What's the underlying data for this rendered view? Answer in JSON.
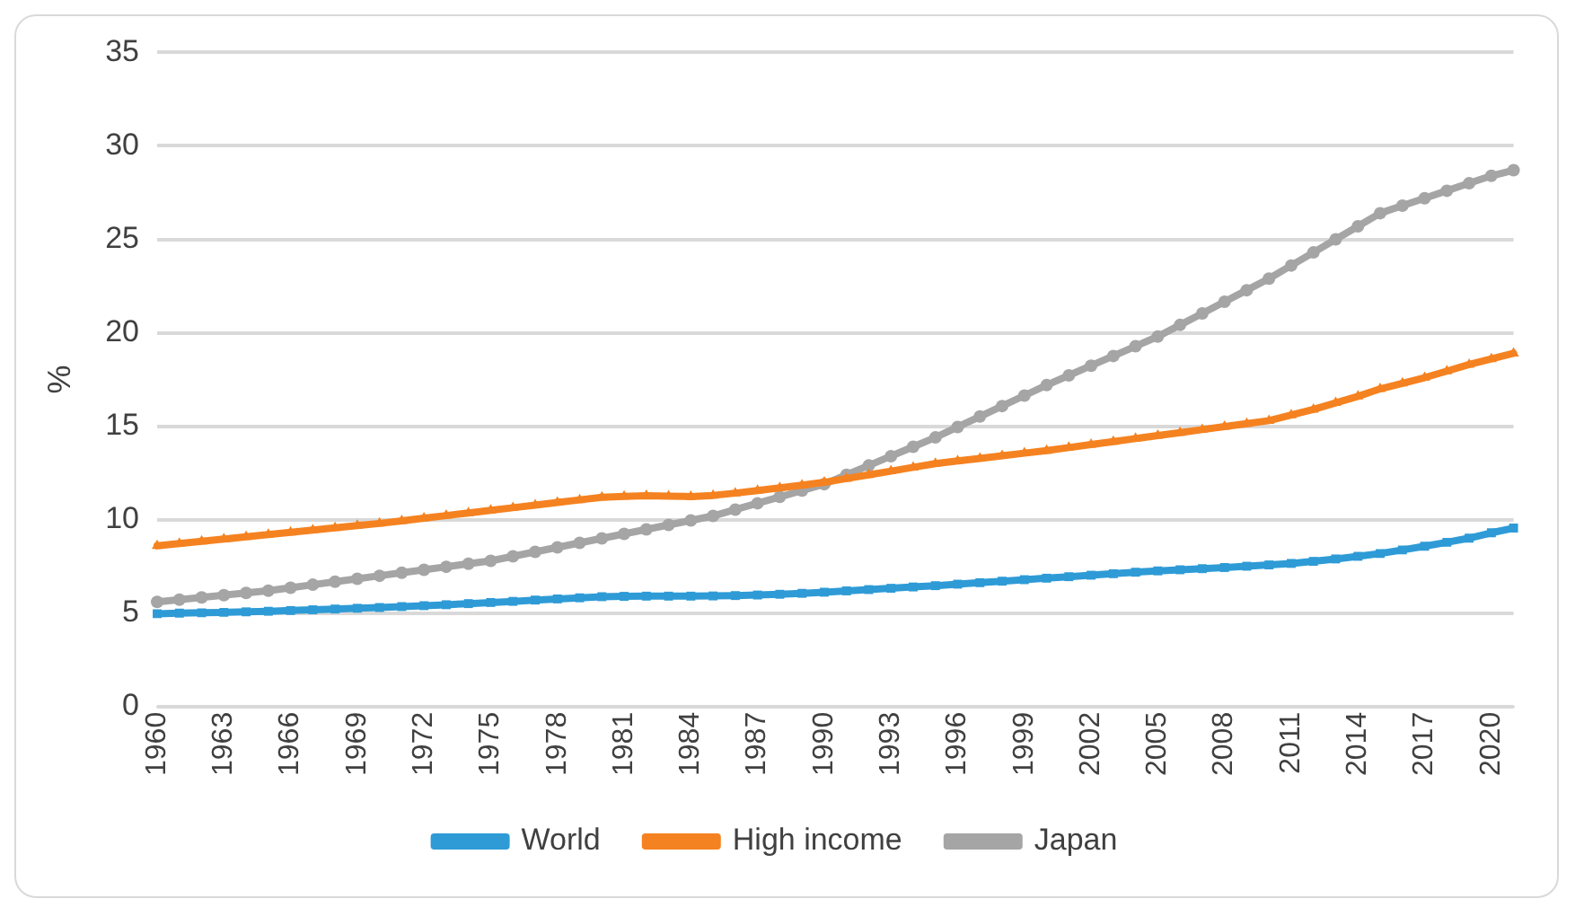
{
  "chart_data": {
    "type": "line",
    "ylabel": "%",
    "categories": [
      "1960",
      null,
      null,
      "1963",
      null,
      null,
      "1966",
      null,
      null,
      "1969",
      null,
      null,
      "1972",
      null,
      null,
      "1975",
      null,
      null,
      "1978",
      null,
      null,
      "1981",
      null,
      null,
      "1984",
      null,
      null,
      "1987",
      null,
      null,
      "1990",
      null,
      null,
      "1993",
      null,
      null,
      "1996",
      null,
      null,
      "1999",
      null,
      null,
      "2002",
      null,
      null,
      "2005",
      null,
      null,
      "2008",
      null,
      null,
      "2011",
      null,
      null,
      "2014",
      null,
      null,
      "2017",
      null,
      null,
      "2020",
      null
    ],
    "series": [
      {
        "name": "World",
        "color": "#2e9bd6",
        "marker": "square",
        "values": [
          4.97,
          5.0,
          5.02,
          5.04,
          5.07,
          5.1,
          5.14,
          5.18,
          5.22,
          5.26,
          5.3,
          5.35,
          5.4,
          5.45,
          5.51,
          5.57,
          5.63,
          5.7,
          5.76,
          5.82,
          5.88,
          5.9,
          5.91,
          5.91,
          5.91,
          5.92,
          5.94,
          5.97,
          6.01,
          6.06,
          6.12,
          6.19,
          6.26,
          6.33,
          6.4,
          6.47,
          6.55,
          6.63,
          6.71,
          6.79,
          6.87,
          6.95,
          7.03,
          7.11,
          7.19,
          7.26,
          7.32,
          7.38,
          7.44,
          7.51,
          7.58,
          7.66,
          7.77,
          7.9,
          8.04,
          8.19,
          8.38,
          8.58,
          8.79,
          9.01,
          9.3,
          9.55
        ]
      },
      {
        "name": "High income",
        "color": "#f58220",
        "marker": "triangle",
        "values": [
          8.6,
          8.72,
          8.84,
          8.96,
          9.08,
          9.2,
          9.32,
          9.44,
          9.56,
          9.68,
          9.8,
          9.94,
          10.08,
          10.22,
          10.36,
          10.5,
          10.64,
          10.78,
          10.92,
          11.06,
          11.2,
          11.25,
          11.28,
          11.26,
          11.24,
          11.3,
          11.42,
          11.56,
          11.7,
          11.85,
          12.0,
          12.2,
          12.4,
          12.6,
          12.8,
          13.0,
          13.14,
          13.28,
          13.42,
          13.56,
          13.7,
          13.86,
          14.02,
          14.18,
          14.34,
          14.5,
          14.66,
          14.82,
          14.98,
          15.14,
          15.3,
          15.6,
          15.9,
          16.25,
          16.6,
          17.0,
          17.3,
          17.6,
          17.95,
          18.3,
          18.6,
          18.9
        ]
      },
      {
        "name": "Japan",
        "color": "#a5a5a5",
        "marker": "circle",
        "values": [
          5.6,
          5.72,
          5.84,
          5.96,
          6.08,
          6.2,
          6.36,
          6.52,
          6.68,
          6.84,
          7.0,
          7.16,
          7.32,
          7.48,
          7.64,
          7.8,
          8.04,
          8.28,
          8.52,
          8.76,
          9.0,
          9.24,
          9.48,
          9.72,
          9.96,
          10.2,
          10.54,
          10.88,
          11.22,
          11.56,
          11.9,
          12.4,
          12.9,
          13.4,
          13.9,
          14.4,
          14.96,
          15.52,
          16.08,
          16.64,
          17.2,
          17.72,
          18.24,
          18.76,
          19.28,
          19.8,
          20.42,
          21.04,
          21.66,
          22.28,
          22.9,
          23.6,
          24.3,
          25.0,
          25.7,
          26.4,
          26.8,
          27.2,
          27.6,
          28.0,
          28.4,
          28.7
        ]
      }
    ],
    "ylim": [
      0,
      35
    ],
    "yticks": [
      0,
      5,
      10,
      15,
      20,
      25,
      30,
      35
    ],
    "grid": "y",
    "legend": "bottom",
    "line_style": "solid"
  }
}
